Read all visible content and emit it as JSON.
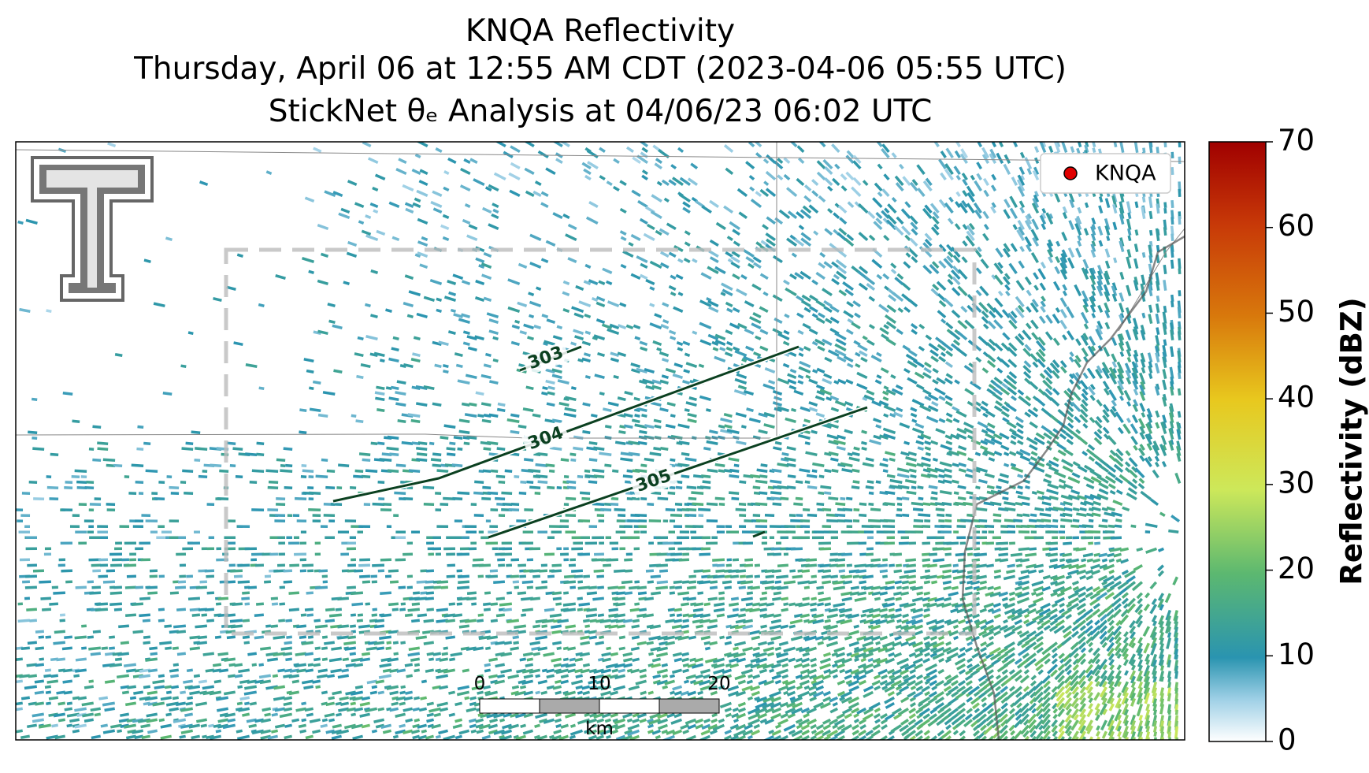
{
  "title": {
    "line1": "KNQA Reflectivity",
    "line2": "Thursday, April 06 at 12:55 AM CDT (2023-04-06 05:55 UTC)",
    "line3": "StickNet θₑ Analysis at 04/06/23 06:02 UTC"
  },
  "legend": {
    "label": "KNQA"
  },
  "colorbar": {
    "label": "Reflectivity (dBZ)",
    "lim": [
      0,
      70
    ],
    "ticks": [
      0,
      10,
      20,
      30,
      40,
      50,
      60,
      70
    ]
  },
  "contours": [
    303,
    304,
    305
  ],
  "scale_bar": {
    "ticks": [
      0,
      10,
      20
    ],
    "unit": "km"
  }
}
